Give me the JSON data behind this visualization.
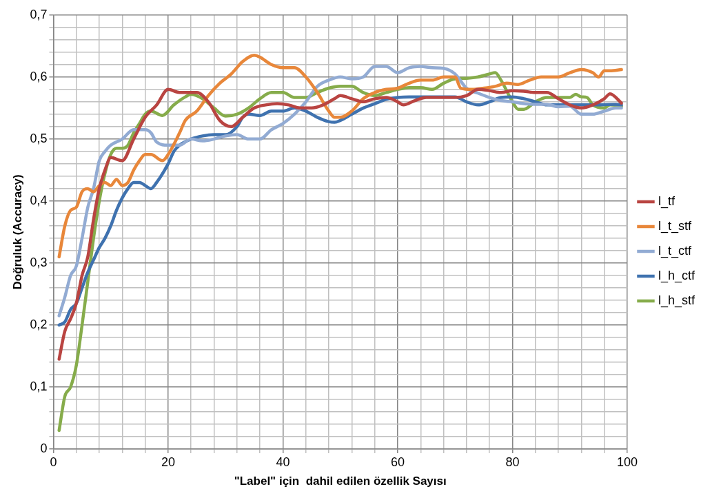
{
  "chart_data": {
    "type": "line",
    "xlabel": "\"Label\" için  dahil edilen özellik Sayısı",
    "ylabel": "Doğruluk (Accuracy)",
    "xlim": [
      0,
      100
    ],
    "xticks": [
      0,
      {
        "value": 4,
        "label": null
      },
      {
        "value": 8,
        "label": null
      },
      {
        "value": 12,
        "label": null
      },
      {
        "value": 16,
        "label": null
      },
      20,
      {
        "value": 24,
        "label": null
      },
      {
        "value": 28,
        "label": null
      },
      {
        "value": 32,
        "label": null
      },
      {
        "value": 36,
        "label": null
      },
      40,
      {
        "value": 44,
        "label": null
      },
      {
        "value": 48,
        "label": null
      },
      {
        "value": 52,
        "label": null
      },
      {
        "value": 56,
        "label": null
      },
      60,
      {
        "value": 64,
        "label": null
      },
      {
        "value": 68,
        "label": null
      },
      {
        "value": 72,
        "label": null
      },
      {
        "value": 76,
        "label": null
      },
      80,
      {
        "value": 84,
        "label": null
      },
      {
        "value": 88,
        "label": null
      },
      {
        "value": 92,
        "label": null
      },
      {
        "value": 96,
        "label": null
      },
      100
    ],
    "ylim": [
      0,
      0.7
    ],
    "yticks": [
      0,
      {
        "value": 0.02,
        "label": null
      },
      {
        "value": 0.04,
        "label": null
      },
      {
        "value": 0.06,
        "label": null
      },
      {
        "value": 0.08,
        "label": null
      },
      {
        "value": 0.1,
        "label": "0,1"
      },
      {
        "value": 0.12,
        "label": null
      },
      {
        "value": 0.14,
        "label": null
      },
      {
        "value": 0.16,
        "label": null
      },
      {
        "value": 0.18,
        "label": null
      },
      {
        "value": 0.2,
        "label": "0,2"
      },
      {
        "value": 0.22,
        "label": null
      },
      {
        "value": 0.24,
        "label": null
      },
      {
        "value": 0.26,
        "label": null
      },
      {
        "value": 0.28,
        "label": null
      },
      {
        "value": 0.3,
        "label": "0,3"
      },
      {
        "value": 0.32,
        "label": null
      },
      {
        "value": 0.34,
        "label": null
      },
      {
        "value": 0.36,
        "label": null
      },
      {
        "value": 0.38,
        "label": null
      },
      {
        "value": 0.4,
        "label": "0,4"
      },
      {
        "value": 0.42,
        "label": null
      },
      {
        "value": 0.44,
        "label": null
      },
      {
        "value": 0.46,
        "label": null
      },
      {
        "value": 0.48,
        "label": null
      },
      {
        "value": 0.5,
        "label": "0,5"
      },
      {
        "value": 0.52,
        "label": null
      },
      {
        "value": 0.54,
        "label": null
      },
      {
        "value": 0.56,
        "label": null
      },
      {
        "value": 0.58,
        "label": null
      },
      {
        "value": 0.6,
        "label": "0,6"
      },
      {
        "value": 0.62,
        "label": null
      },
      {
        "value": 0.64,
        "label": null
      },
      {
        "value": 0.66,
        "label": null
      },
      {
        "value": 0.68,
        "label": null
      },
      {
        "value": 0.7,
        "label": "0,7"
      }
    ],
    "grid": true,
    "legend": "right",
    "marker": "none",
    "line_style": "solid",
    "series": [
      {
        "name": "l_tf",
        "color": "#b94441",
        "x": [
          1,
          2,
          3,
          4,
          5,
          6,
          7,
          8,
          9,
          10,
          12,
          14,
          16,
          18,
          20,
          22,
          24,
          25,
          27,
          29,
          31,
          33,
          35,
          37,
          39,
          41,
          43,
          45,
          47,
          49,
          50,
          52,
          54,
          56,
          58,
          60,
          61,
          63,
          65,
          68,
          70,
          72,
          74,
          76,
          78,
          80,
          82,
          84,
          86,
          88,
          90,
          92,
          94,
          96,
          97,
          99
        ],
        "values": [
          0.145,
          0.19,
          0.21,
          0.235,
          0.28,
          0.31,
          0.37,
          0.42,
          0.45,
          0.47,
          0.465,
          0.5,
          0.535,
          0.555,
          0.58,
          0.575,
          0.575,
          0.575,
          0.56,
          0.53,
          0.52,
          0.535,
          0.55,
          0.555,
          0.557,
          0.555,
          0.55,
          0.55,
          0.555,
          0.565,
          0.57,
          0.565,
          0.56,
          0.565,
          0.567,
          0.56,
          0.555,
          0.562,
          0.567,
          0.567,
          0.567,
          0.57,
          0.58,
          0.578,
          0.575,
          0.578,
          0.577,
          0.575,
          0.575,
          0.565,
          0.555,
          0.55,
          0.555,
          0.565,
          0.573,
          0.558
        ]
      },
      {
        "name": "l_t_stf",
        "color": "#e8873a",
        "x": [
          1,
          2,
          3,
          4,
          5,
          6,
          7,
          8,
          9,
          10,
          11,
          12,
          13,
          14,
          15,
          16,
          17,
          19,
          20,
          22,
          23,
          25,
          27,
          29,
          31,
          33,
          35,
          36,
          38,
          40,
          42,
          44,
          46,
          48,
          49,
          50,
          52,
          54,
          56,
          58,
          60,
          62,
          64,
          66,
          68,
          70,
          71,
          73,
          75,
          77,
          79,
          81,
          83,
          85,
          88,
          90,
          92,
          94,
          95,
          96,
          97,
          99
        ],
        "values": [
          0.31,
          0.36,
          0.385,
          0.39,
          0.415,
          0.42,
          0.415,
          0.425,
          0.43,
          0.425,
          0.435,
          0.425,
          0.43,
          0.45,
          0.465,
          0.475,
          0.475,
          0.465,
          0.475,
          0.51,
          0.53,
          0.545,
          0.57,
          0.59,
          0.605,
          0.625,
          0.635,
          0.632,
          0.62,
          0.615,
          0.615,
          0.6,
          0.575,
          0.545,
          0.535,
          0.535,
          0.545,
          0.565,
          0.575,
          0.58,
          0.582,
          0.59,
          0.595,
          0.595,
          0.6,
          0.6,
          0.582,
          0.58,
          0.582,
          0.585,
          0.59,
          0.588,
          0.595,
          0.6,
          0.6,
          0.607,
          0.612,
          0.607,
          0.6,
          0.61,
          0.61,
          0.612
        ]
      },
      {
        "name": "l_t_ctf",
        "color": "#92abd3",
        "x": [
          1,
          2,
          3,
          4,
          5,
          6,
          7,
          8,
          9,
          10,
          12,
          14,
          16,
          17,
          18,
          20,
          22,
          24,
          26,
          28,
          30,
          32,
          34,
          36,
          38,
          40,
          42,
          44,
          46,
          48,
          50,
          52,
          54,
          56,
          58,
          60,
          62,
          64,
          66,
          68,
          70,
          72,
          74,
          76,
          78,
          80,
          82,
          84,
          86,
          88,
          90,
          92,
          94,
          96,
          98,
          99
        ],
        "values": [
          0.215,
          0.245,
          0.28,
          0.295,
          0.34,
          0.39,
          0.42,
          0.465,
          0.48,
          0.49,
          0.5,
          0.515,
          0.515,
          0.51,
          0.495,
          0.49,
          0.49,
          0.5,
          0.497,
          0.5,
          0.505,
          0.507,
          0.5,
          0.5,
          0.515,
          0.525,
          0.54,
          0.56,
          0.585,
          0.595,
          0.6,
          0.597,
          0.6,
          0.617,
          0.617,
          0.607,
          0.615,
          0.617,
          0.615,
          0.614,
          0.605,
          0.582,
          0.574,
          0.567,
          0.562,
          0.56,
          0.557,
          0.556,
          0.556,
          0.552,
          0.553,
          0.54,
          0.54,
          0.545,
          0.55,
          0.55
        ]
      },
      {
        "name": "l_h_ctf",
        "color": "#3f72af",
        "x": [
          1,
          2,
          3,
          4,
          5,
          6,
          7,
          8,
          9,
          10,
          11,
          12,
          13,
          14,
          15,
          16,
          17,
          18,
          20,
          21,
          22,
          24,
          26,
          28,
          30,
          32,
          33,
          34,
          36,
          38,
          40,
          42,
          44,
          46,
          48,
          49,
          50,
          52,
          54,
          56,
          58,
          60,
          62,
          66,
          70,
          72,
          74,
          76,
          78,
          80,
          82,
          84,
          86,
          90,
          94,
          98,
          99
        ],
        "values": [
          0.2,
          0.205,
          0.225,
          0.235,
          0.26,
          0.285,
          0.305,
          0.325,
          0.34,
          0.36,
          0.385,
          0.405,
          0.42,
          0.43,
          0.43,
          0.425,
          0.42,
          0.43,
          0.46,
          0.48,
          0.49,
          0.5,
          0.505,
          0.507,
          0.507,
          0.52,
          0.535,
          0.54,
          0.538,
          0.545,
          0.545,
          0.55,
          0.545,
          0.535,
          0.528,
          0.527,
          0.53,
          0.54,
          0.55,
          0.557,
          0.564,
          0.567,
          0.568,
          0.568,
          0.568,
          0.56,
          0.555,
          0.56,
          0.567,
          0.568,
          0.565,
          0.56,
          0.555,
          0.555,
          0.555,
          0.556,
          0.555
        ]
      },
      {
        "name": "l_h_stf",
        "color": "#86ac4b",
        "x": [
          1,
          2,
          3,
          4,
          5,
          6,
          7,
          8,
          9,
          10,
          11,
          12,
          13,
          14,
          15,
          16,
          17,
          19,
          21,
          23,
          24,
          26,
          28,
          30,
          32,
          34,
          36,
          38,
          40,
          42,
          44,
          46,
          48,
          50,
          52,
          54,
          56,
          58,
          60,
          62,
          64,
          66,
          68,
          70,
          72,
          74,
          76,
          77,
          78,
          80,
          81,
          82,
          84,
          86,
          88,
          90,
          91,
          92,
          93,
          94,
          96,
          97,
          99
        ],
        "values": [
          0.03,
          0.085,
          0.1,
          0.135,
          0.2,
          0.27,
          0.34,
          0.4,
          0.445,
          0.475,
          0.485,
          0.485,
          0.49,
          0.51,
          0.525,
          0.54,
          0.545,
          0.538,
          0.555,
          0.568,
          0.572,
          0.565,
          0.55,
          0.537,
          0.54,
          0.55,
          0.565,
          0.575,
          0.575,
          0.567,
          0.567,
          0.575,
          0.582,
          0.585,
          0.585,
          0.575,
          0.57,
          0.575,
          0.58,
          0.583,
          0.583,
          0.58,
          0.59,
          0.597,
          0.598,
          0.6,
          0.605,
          0.607,
          0.595,
          0.56,
          0.548,
          0.548,
          0.56,
          0.567,
          0.567,
          0.567,
          0.572,
          0.568,
          0.567,
          0.555,
          0.55,
          0.555,
          0.553
        ]
      }
    ]
  }
}
